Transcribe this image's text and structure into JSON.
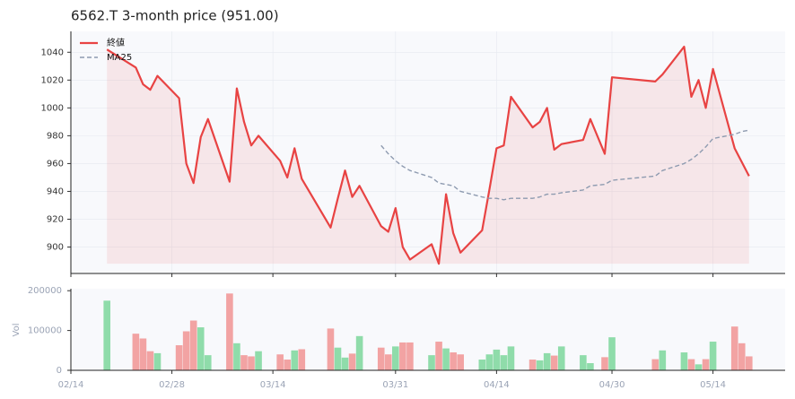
{
  "chart_data": {
    "type": "line",
    "title": "6562.T  3-month price (951.00)",
    "x": [
      "02/19",
      "02/23",
      "02/24",
      "02/25",
      "02/26",
      "03/01",
      "03/02",
      "03/03",
      "03/04",
      "03/05",
      "03/08",
      "03/09",
      "03/10",
      "03/11",
      "03/12",
      "03/15",
      "03/16",
      "03/17",
      "03/18",
      "03/22",
      "03/23",
      "03/24",
      "03/25",
      "03/26",
      "03/29",
      "03/30",
      "03/31",
      "04/01",
      "04/02",
      "04/05",
      "04/06",
      "04/07",
      "04/08",
      "04/09",
      "04/12",
      "04/13",
      "04/14",
      "04/15",
      "04/16",
      "04/19",
      "04/20",
      "04/21",
      "04/22",
      "04/23",
      "04/26",
      "04/27",
      "04/29",
      "04/30",
      "05/06",
      "05/07",
      "05/10",
      "05/11",
      "05/12",
      "05/13",
      "05/14",
      "05/17",
      "05/18",
      "05/19"
    ],
    "xlim": [
      "02/14",
      "05/24"
    ],
    "xticks": [
      "02/14",
      "02/28",
      "03/14",
      "03/31",
      "04/14",
      "04/30",
      "05/14"
    ],
    "ylim": [
      881,
      1055
    ],
    "yticks": [
      900,
      920,
      940,
      960,
      980,
      1000,
      1020,
      1040
    ],
    "grid": true,
    "legend": "upper left",
    "series": [
      {
        "name": "終値",
        "color": "#e84343",
        "linestyle": "solid",
        "fill": true,
        "values": [
          1042,
          1029,
          1017,
          1013,
          1023,
          1007,
          960,
          946,
          979,
          992,
          947,
          1014,
          990,
          973,
          980,
          962,
          950,
          971,
          949,
          914,
          935,
          955,
          936,
          944,
          915,
          911,
          928,
          900,
          891,
          902,
          888,
          938,
          910,
          896,
          912,
          941,
          971,
          973,
          1008,
          986,
          990,
          1000,
          970,
          974,
          977,
          992,
          967,
          1022,
          1019,
          1024,
          1044,
          1008,
          1020,
          1000,
          1028,
          971,
          961,
          951
        ]
      },
      {
        "name": "MA25",
        "color": "#8e9bb0",
        "linestyle": "dashed",
        "fill": false,
        "values": [
          null,
          null,
          null,
          null,
          null,
          null,
          null,
          null,
          null,
          null,
          null,
          null,
          null,
          null,
          null,
          null,
          null,
          null,
          null,
          null,
          null,
          null,
          null,
          null,
          973,
          967,
          962,
          958,
          955,
          950,
          946,
          945,
          944,
          940,
          936,
          935,
          935,
          934,
          935,
          935,
          936,
          938,
          938,
          939,
          941,
          944,
          945,
          948,
          951,
          955,
          960,
          963,
          967,
          972,
          978,
          981,
          983,
          984
        ]
      }
    ],
    "volume": {
      "type": "bar",
      "ylabel": "Vol",
      "up_color": "#8fdcaa",
      "down_color": "#f2a3a3",
      "ylim": [
        0,
        205000
      ],
      "yticks": [
        0,
        100000,
        200000
      ],
      "values": [
        175000,
        92000,
        80000,
        48000,
        43000,
        63000,
        98000,
        125000,
        108000,
        38000,
        193000,
        68000,
        38000,
        35000,
        48000,
        40000,
        27000,
        50000,
        53000,
        105000,
        57000,
        32000,
        42000,
        86000,
        57000,
        40000,
        60000,
        70000,
        70000,
        38000,
        72000,
        55000,
        45000,
        40000,
        27000,
        40000,
        52000,
        38000,
        60000,
        27000,
        25000,
        43000,
        37000,
        60000,
        38000,
        18000,
        33000,
        83000,
        28000,
        50000,
        45000,
        28000,
        15000,
        28000,
        72000,
        110000,
        68000,
        35000
      ]
    }
  }
}
